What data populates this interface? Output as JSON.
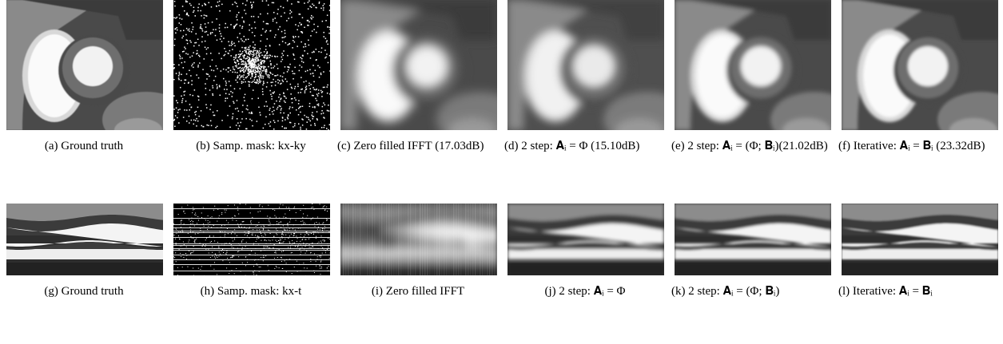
{
  "figure": {
    "panels": [
      {
        "caption": "(a) Ground truth"
      },
      {
        "caption": "(b) Samp. mask: kx-ky"
      },
      {
        "caption": "(c) Zero filled IFFT (17.03dB)"
      },
      {
        "caption": "(d) 2 step: 𝐀ᵢ = Φ (15.10dB)"
      },
      {
        "caption": "(e) 2 step: 𝐀ᵢ = (Φ; 𝐁ᵢ)(21.02dB)"
      },
      {
        "caption": "(f) Iterative: 𝐀ᵢ = 𝐁ᵢ (23.32dB)"
      },
      {
        "caption": "(g) Ground truth"
      },
      {
        "caption": "(h) Samp. mask: kx-t"
      },
      {
        "caption": "(i) Zero filled IFFT"
      },
      {
        "caption": "(j) 2 step: 𝐀ᵢ = Φ"
      },
      {
        "caption": "(k) 2 step: 𝐀ᵢ = (Φ; 𝐁ᵢ)"
      },
      {
        "caption": "(l) Iterative: 𝐀ᵢ = 𝐁ᵢ"
      }
    ]
  }
}
